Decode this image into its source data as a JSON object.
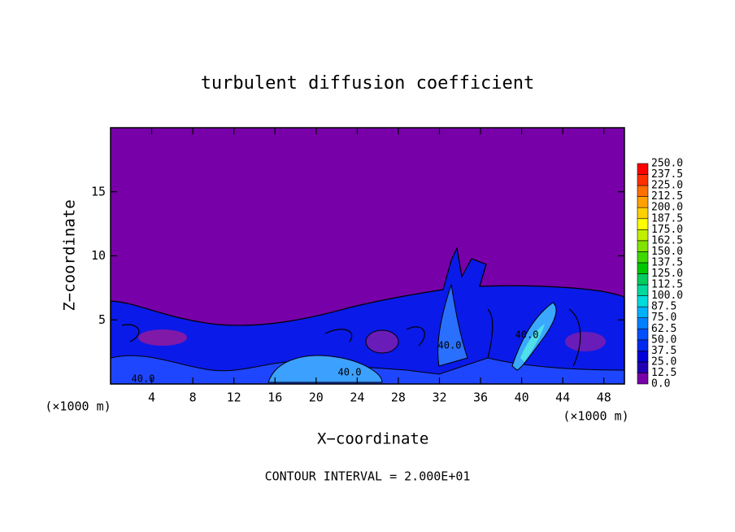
{
  "chart_data": {
    "type": "contour",
    "title": "turbulent diffusion coefficient",
    "x_label": "X−coordinate",
    "y_label": "Z−coordinate",
    "x_unit": "(×1000 m)",
    "y_unit": "(×1000 m)",
    "footer": "CONTOUR INTERVAL = 2.000E+01",
    "xlim": [
      0,
      50
    ],
    "xticks": [
      4,
      8,
      12,
      16,
      20,
      24,
      28,
      32,
      36,
      40,
      44,
      48
    ],
    "ylim": [
      0,
      20
    ],
    "yticks": [
      5,
      10,
      15
    ],
    "contour_labels": [
      "40.0",
      "40.0",
      "40.0",
      "40.0"
    ],
    "colorbar": {
      "levels": [
        {
          "value": 0,
          "label": "0.0"
        },
        12.5,
        {
          "value": 25,
          "label": "25.0"
        },
        37.5,
        {
          "value": 50,
          "label": "50.0"
        },
        62.5,
        {
          "value": 75,
          "label": "75.0"
        },
        87.5,
        {
          "value": 100,
          "label": "100.0"
        },
        112.5,
        {
          "value": 125,
          "label": "125.0"
        },
        137.5,
        {
          "value": 150,
          "label": "150.0"
        },
        162.5,
        {
          "value": 175,
          "label": "175.0"
        },
        187.5,
        {
          "value": 200,
          "label": "200.0"
        },
        212.5,
        {
          "value": 225,
          "label": "225.0"
        },
        237.5,
        {
          "value": 250,
          "label": "250.0"
        }
      ],
      "colors": [
        "#7700a8",
        "#2200b4",
        "#0000d8",
        "#0028f0",
        "#0050ff",
        "#0080ff",
        "#00b0ff",
        "#00dcdc",
        "#00d8a0",
        "#00cc60",
        "#00c800",
        "#40d800",
        "#80e400",
        "#c0f000",
        "#ffff00",
        "#ffd000",
        "#ffa000",
        "#ff7000",
        "#ff3000",
        "#ff0000",
        "#f08888"
      ]
    }
  }
}
